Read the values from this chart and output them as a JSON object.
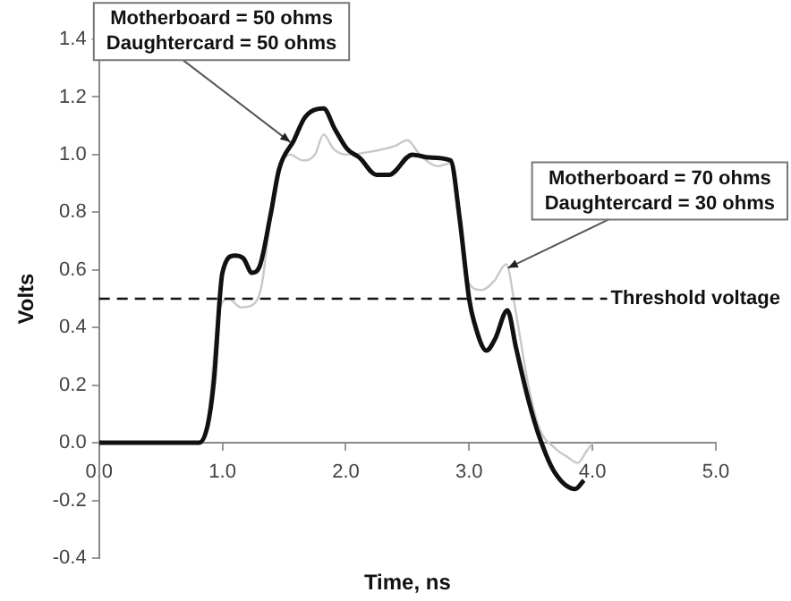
{
  "chart_data": {
    "type": "line",
    "xlabel": "Time, ns",
    "ylabel": "Volts",
    "xlim": [
      0,
      5
    ],
    "xticks": [
      {
        "value": 0,
        "label": "0.0"
      },
      {
        "value": 1,
        "label": "1.0"
      },
      {
        "value": 2,
        "label": "2.0"
      },
      {
        "value": 3,
        "label": "3.0"
      },
      {
        "value": 4,
        "label": "4.0"
      },
      {
        "value": 5,
        "label": "5.0"
      }
    ],
    "ylim": [
      -0.4,
      1.4
    ],
    "yticks": [
      -0.4,
      -0.2,
      {
        "value": 0,
        "label": "0.0"
      },
      0.2,
      0.4,
      0.6,
      0.8,
      {
        "value": 1,
        "label": "1.0"
      },
      1.2,
      1.4
    ],
    "grid": false,
    "legend": false,
    "marker": "none",
    "line_style": "solid",
    "series": [
      {
        "name": "Motherboard = 50 ohms\nDaughtercard = 50 ohms",
        "color": "#111111",
        "x": [
          0,
          0.81,
          0.88,
          0.93,
          1.0,
          1.1,
          1.17,
          1.24,
          1.3,
          1.39,
          1.46,
          1.58,
          1.67,
          1.82,
          1.91,
          2.01,
          2.11,
          2.25,
          2.35,
          2.54,
          2.68,
          2.85,
          2.92,
          3.0,
          3.04,
          3.14,
          3.21,
          3.31,
          3.38,
          3.48,
          3.57,
          3.69,
          3.86,
          3.93
        ],
        "values": [
          0,
          0,
          0.06,
          0.21,
          0.59,
          0.65,
          0.64,
          0.59,
          0.61,
          0.79,
          0.95,
          1.05,
          1.13,
          1.16,
          1.09,
          1.02,
          0.99,
          0.93,
          0.93,
          1.0,
          0.99,
          0.98,
          0.79,
          0.5,
          0.42,
          0.32,
          0.36,
          0.46,
          0.33,
          0.15,
          0.02,
          -0.1,
          -0.16,
          -0.13
        ]
      },
      {
        "name": "Motherboard = 70 ohms\nDaughtercard = 30 ohms",
        "color": "#c8c8c8",
        "x": [
          0,
          0.81,
          0.88,
          0.93,
          0.97,
          1.05,
          1.15,
          1.25,
          1.32,
          1.39,
          1.46,
          1.55,
          1.65,
          1.75,
          1.82,
          1.9,
          2.0,
          2.2,
          2.4,
          2.5,
          2.6,
          2.75,
          2.85,
          2.92,
          2.98,
          3.1,
          3.2,
          3.3,
          3.38,
          3.48,
          3.57,
          3.7,
          3.8,
          3.88,
          3.95,
          4.0
        ],
        "values": [
          0,
          0,
          0.06,
          0.3,
          0.45,
          0.5,
          0.47,
          0.48,
          0.55,
          0.79,
          0.95,
          1.0,
          0.98,
          1.0,
          1.07,
          1.02,
          1.0,
          1.01,
          1.03,
          1.05,
          1.0,
          0.96,
          0.97,
          0.75,
          0.57,
          0.53,
          0.56,
          0.62,
          0.45,
          0.2,
          0.05,
          -0.02,
          -0.05,
          -0.07,
          -0.03,
          0.0
        ]
      }
    ],
    "ref_lines": [
      {
        "axis": "y",
        "value": 0.5,
        "label": "Threshold voltage",
        "line_style": "dashed",
        "color": "#111111"
      }
    ]
  }
}
